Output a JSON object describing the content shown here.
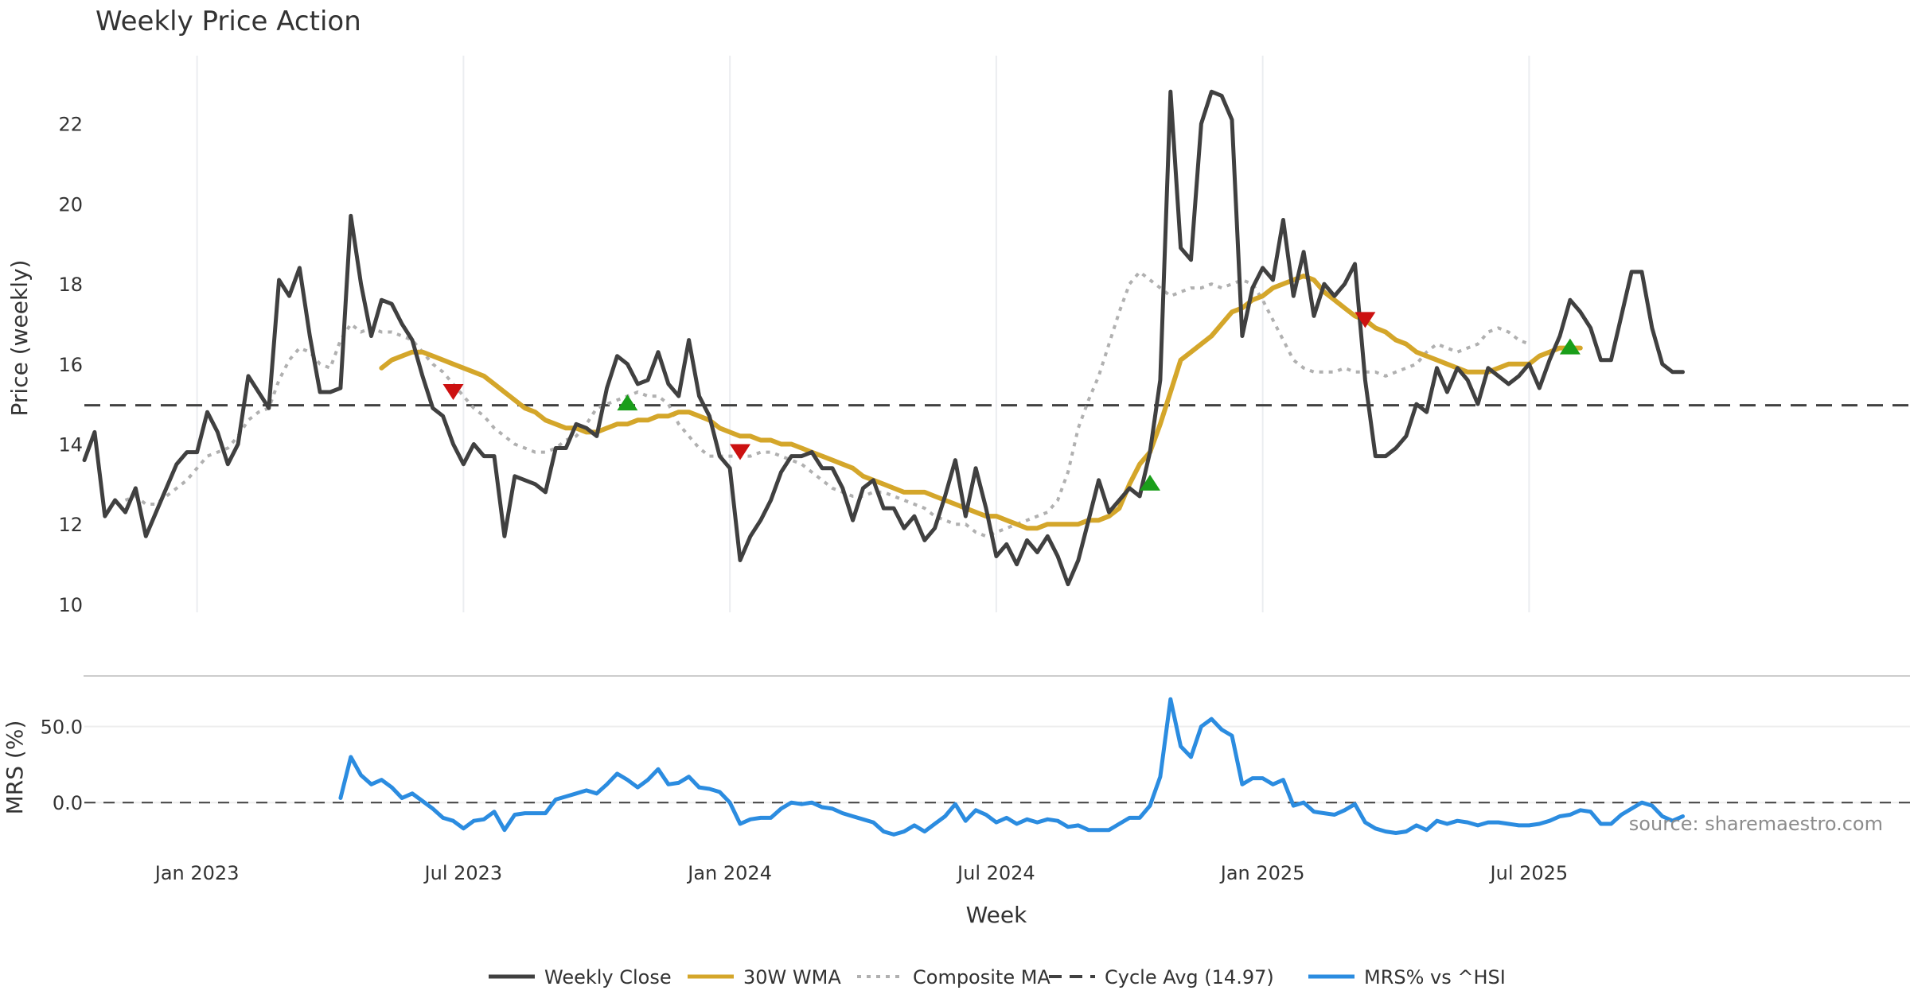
{
  "chart_data": {
    "type": "line",
    "title": "Weekly Price Action",
    "xlabel": "Week",
    "source": "source: sharemaestro.com",
    "x_ticks": [
      {
        "label": "Jan 2023",
        "week": 11
      },
      {
        "label": "Jul 2023",
        "week": 37
      },
      {
        "label": "Jan 2024",
        "week": 63
      },
      {
        "label": "Jul 2024",
        "week": 89
      },
      {
        "label": "Jan 2025",
        "week": 115
      },
      {
        "label": "Jul 2025",
        "week": 141
      }
    ],
    "price_panel": {
      "ylabel": "Price (weekly)",
      "ylim": [
        9.8,
        23.7
      ],
      "yticks": [
        "10",
        "12",
        "14",
        "16",
        "18",
        "20",
        "22"
      ],
      "cycle_avg": 14.97,
      "series": [
        {
          "name": "Weekly Close",
          "color": "#404040",
          "style": "solid",
          "start": 0,
          "values": [
            13.6,
            14.3,
            12.2,
            12.6,
            12.3,
            12.9,
            11.7,
            12.3,
            12.9,
            13.5,
            13.8,
            13.8,
            14.8,
            14.3,
            13.5,
            14.0,
            15.7,
            15.3,
            14.9,
            18.1,
            17.7,
            18.4,
            16.7,
            15.3,
            15.3,
            15.4,
            19.7,
            18.0,
            16.7,
            17.6,
            17.5,
            17.0,
            16.6,
            15.7,
            14.9,
            14.7,
            14.0,
            13.5,
            14.0,
            13.7,
            13.7,
            11.7,
            13.2,
            13.1,
            13.0,
            12.8,
            13.9,
            13.9,
            14.5,
            14.4,
            14.2,
            15.4,
            16.2,
            16.0,
            15.5,
            15.6,
            16.3,
            15.5,
            15.2,
            16.6,
            15.2,
            14.7,
            13.7,
            13.4,
            11.1,
            11.7,
            12.1,
            12.6,
            13.3,
            13.7,
            13.7,
            13.8,
            13.4,
            13.4,
            12.9,
            12.1,
            12.9,
            13.1,
            12.4,
            12.4,
            11.9,
            12.2,
            11.6,
            11.9,
            12.7,
            13.6,
            12.2,
            13.4,
            12.4,
            11.2,
            11.5,
            11.0,
            11.6,
            11.3,
            11.7,
            11.2,
            10.5,
            11.1,
            12.1,
            13.1,
            12.3,
            12.6,
            12.9,
            12.7,
            13.8,
            15.6,
            22.8,
            18.9,
            18.6,
            22.0,
            22.8,
            22.7,
            22.1,
            16.7,
            17.9,
            18.4,
            18.1,
            19.6,
            17.7,
            18.8,
            17.2,
            18.0,
            17.7,
            18.0,
            18.5,
            15.6,
            13.7,
            13.7,
            13.9,
            14.2,
            15.0,
            14.8,
            15.9,
            15.3,
            15.9,
            15.6,
            15.0,
            15.9,
            15.7,
            15.5,
            15.7,
            16.0,
            15.4,
            16.1,
            16.7,
            17.6,
            17.3,
            16.9,
            16.1,
            16.1,
            17.2,
            18.3,
            18.3,
            16.9,
            16.0,
            15.8,
            15.8
          ]
        },
        {
          "name": "30W WMA",
          "color": "#d4a62a",
          "style": "solid",
          "start": 29,
          "values": [
            15.9,
            16.1,
            16.2,
            16.3,
            16.3,
            16.2,
            16.1,
            16.0,
            15.9,
            15.8,
            15.7,
            15.5,
            15.3,
            15.1,
            14.9,
            14.8,
            14.6,
            14.5,
            14.4,
            14.4,
            14.3,
            14.3,
            14.4,
            14.5,
            14.5,
            14.6,
            14.6,
            14.7,
            14.7,
            14.8,
            14.8,
            14.7,
            14.6,
            14.4,
            14.3,
            14.2,
            14.2,
            14.1,
            14.1,
            14.0,
            14.0,
            13.9,
            13.8,
            13.7,
            13.6,
            13.5,
            13.4,
            13.2,
            13.1,
            13.0,
            12.9,
            12.8,
            12.8,
            12.8,
            12.7,
            12.6,
            12.5,
            12.4,
            12.3,
            12.2,
            12.2,
            12.1,
            12.0,
            11.9,
            11.9,
            12.0,
            12.0,
            12.0,
            12.0,
            12.1,
            12.1,
            12.2,
            12.4,
            13.0,
            13.5,
            13.8,
            14.5,
            15.3,
            16.1,
            16.3,
            16.5,
            16.7,
            17.0,
            17.3,
            17.4,
            17.6,
            17.7,
            17.9,
            18.0,
            18.1,
            18.2,
            18.1,
            17.8,
            17.6,
            17.4,
            17.2,
            17.1,
            16.9,
            16.8,
            16.6,
            16.5,
            16.3,
            16.2,
            16.1,
            16.0,
            15.9,
            15.8,
            15.8,
            15.8,
            15.9,
            16.0,
            16.0,
            16.0,
            16.2,
            16.3,
            16.4,
            16.4,
            16.4
          ]
        },
        {
          "name": "Composite MA",
          "color": "#b0b0b0",
          "style": "dotted",
          "start": 4,
          "values": [
            12.6,
            12.7,
            12.5,
            12.5,
            12.7,
            12.9,
            13.1,
            13.4,
            13.7,
            13.8,
            13.9,
            14.2,
            14.6,
            14.8,
            14.9,
            15.6,
            16.1,
            16.4,
            16.3,
            16.0,
            15.9,
            16.6,
            17.0,
            16.8,
            16.9,
            16.8,
            16.8,
            16.7,
            16.6,
            16.3,
            16.0,
            15.8,
            15.5,
            15.2,
            14.9,
            14.7,
            14.4,
            14.2,
            14.0,
            13.9,
            13.8,
            13.8,
            13.9,
            14.1,
            14.2,
            14.5,
            14.9,
            15.0,
            15.1,
            15.2,
            15.3,
            15.2,
            15.2,
            15.0,
            14.5,
            14.2,
            13.9,
            13.7,
            13.7,
            13.7,
            13.7,
            13.7,
            13.8,
            13.8,
            13.7,
            13.6,
            13.5,
            13.3,
            13.1,
            12.9,
            12.8,
            12.7,
            12.7,
            12.8,
            12.8,
            12.7,
            12.6,
            12.5,
            12.4,
            12.2,
            12.1,
            12.0,
            12.0,
            11.8,
            11.7,
            11.8,
            11.9,
            12.0,
            12.1,
            12.2,
            12.3,
            12.6,
            13.3,
            14.4,
            15.1,
            15.7,
            16.5,
            17.3,
            18.0,
            18.3,
            18.1,
            17.9,
            17.7,
            17.8,
            17.9,
            17.9,
            18.0,
            17.9,
            18.0,
            18.1,
            18.0,
            17.6,
            17.1,
            16.6,
            16.1,
            15.9,
            15.8,
            15.8,
            15.8,
            15.9,
            15.8,
            15.8,
            15.8,
            15.7,
            15.8,
            15.9,
            16.0,
            16.3,
            16.5,
            16.4,
            16.3,
            16.4,
            16.5,
            16.8,
            16.9,
            16.8,
            16.6,
            16.5
          ]
        },
        {
          "name": "Cycle Avg (14.97)",
          "color": "#404040",
          "style": "dashed",
          "start": 0,
          "values": []
        }
      ],
      "signals": [
        {
          "type": "sell",
          "week": 36,
          "value": 15.3
        },
        {
          "type": "buy",
          "week": 53,
          "value": 15.0
        },
        {
          "type": "sell",
          "week": 64,
          "value": 13.8
        },
        {
          "type": "buy",
          "week": 104,
          "value": 13.0
        },
        {
          "type": "sell",
          "week": 125,
          "value": 17.1
        },
        {
          "type": "buy",
          "week": 145,
          "value": 16.4
        }
      ]
    },
    "mrs_panel": {
      "ylabel": "MRS (%)",
      "ylim": [
        -37,
        77
      ],
      "yticks": [
        "0.0",
        "50.0"
      ],
      "zero_line": 0,
      "series": [
        {
          "name": "MRS% vs ^HSI",
          "color": "#2b8ce0",
          "style": "solid",
          "start": 25,
          "values": [
            3,
            30,
            18,
            12,
            15,
            10,
            3,
            6,
            1,
            -4,
            -10,
            -12,
            -17,
            -12,
            -11,
            -6,
            -18,
            -8,
            -7,
            -7,
            -7,
            2,
            4,
            6,
            8,
            6,
            12,
            19,
            15,
            10,
            15,
            22,
            12,
            13,
            17,
            10,
            9,
            7,
            0,
            -14,
            -11,
            -10,
            -10,
            -4,
            0,
            -1,
            0,
            -3,
            -4,
            -7,
            -9,
            -11,
            -13,
            -19,
            -21,
            -19,
            -15,
            -19,
            -14,
            -9,
            -1,
            -12,
            -5,
            -8,
            -13,
            -10,
            -14,
            -11,
            -13,
            -11,
            -12,
            -16,
            -15,
            -18,
            -18,
            -18,
            -14,
            -10,
            -10,
            -2,
            17,
            68,
            37,
            30,
            50,
            55,
            48,
            44,
            12,
            16,
            16,
            12,
            15,
            -2,
            0,
            -6,
            -7,
            -8,
            -5,
            -1,
            -13,
            -17,
            -19,
            -20,
            -19,
            -15,
            -18,
            -12,
            -14,
            -12,
            -13,
            -15,
            -13,
            -13,
            -14,
            -15,
            -15,
            -14,
            -12,
            -9,
            -8,
            -5,
            -6,
            -14,
            -14,
            -8,
            -4,
            0,
            -2,
            -9,
            -12,
            -9
          ]
        }
      ]
    },
    "legend": [
      {
        "label": "Weekly Close",
        "color": "#404040",
        "style": "solid"
      },
      {
        "label": "30W WMA",
        "color": "#d4a62a",
        "style": "solid"
      },
      {
        "label": "Composite MA",
        "color": "#b0b0b0",
        "style": "dotted"
      },
      {
        "label": "Cycle Avg (14.97)",
        "color": "#404040",
        "style": "dashed"
      },
      {
        "label": "MRS% vs ^HSI",
        "color": "#2b8ce0",
        "style": "solid"
      }
    ],
    "legend_position": "bottom-center"
  }
}
